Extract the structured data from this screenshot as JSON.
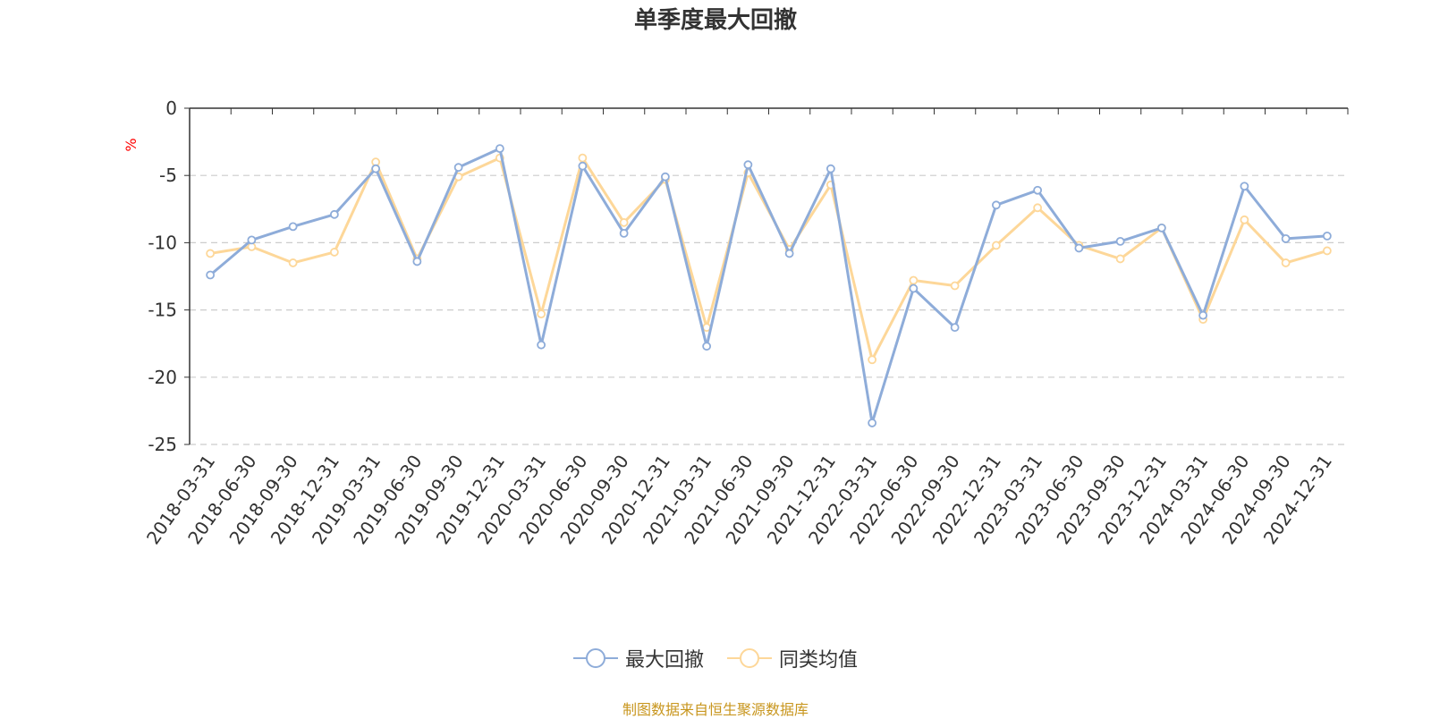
{
  "chart_data": {
    "type": "line",
    "title": "单季度最大回撤",
    "ylabel": "%",
    "xlabel": "",
    "ylim": [
      -25,
      0
    ],
    "yticks": [
      0,
      -5,
      -10,
      -15,
      -20,
      -25
    ],
    "grid": true,
    "legend_position": "bottom",
    "categories": [
      "2018-03-31",
      "2018-06-30",
      "2018-09-30",
      "2018-12-31",
      "2019-03-31",
      "2019-06-30",
      "2019-09-30",
      "2019-12-31",
      "2020-03-31",
      "2020-06-30",
      "2020-09-30",
      "2020-12-31",
      "2021-03-31",
      "2021-06-30",
      "2021-09-30",
      "2021-12-31",
      "2022-03-31",
      "2022-06-30",
      "2022-09-30",
      "2022-12-31",
      "2023-03-31",
      "2023-06-30",
      "2023-09-30",
      "2023-12-31",
      "2024-03-31",
      "2024-06-30",
      "2024-09-30",
      "2024-12-31"
    ],
    "series": [
      {
        "name": "最大回撤",
        "color": "#8eacd9",
        "values": [
          -12.4,
          -9.8,
          -8.8,
          -7.9,
          -4.5,
          -11.4,
          -4.4,
          -3.0,
          -17.6,
          -4.3,
          -9.3,
          -5.1,
          -17.7,
          -4.2,
          -10.8,
          -4.5,
          -23.4,
          -13.4,
          -16.3,
          -7.2,
          -6.1,
          -10.4,
          -9.9,
          -8.9,
          -15.4,
          -5.8,
          -9.7,
          -9.5
        ]
      },
      {
        "name": "同类均值",
        "color": "#fdd799",
        "values": [
          -10.8,
          -10.3,
          -11.5,
          -10.7,
          -4.0,
          -11.2,
          -5.1,
          -3.7,
          -15.3,
          -3.7,
          -8.5,
          -5.3,
          -16.3,
          -4.8,
          -10.5,
          -5.7,
          -18.7,
          -12.8,
          -13.2,
          -10.2,
          -7.4,
          -10.2,
          -11.2,
          -8.9,
          -15.7,
          -8.3,
          -11.5,
          -10.6
        ]
      }
    ]
  },
  "footer": {
    "source": "制图数据来自恒生聚源数据库"
  }
}
